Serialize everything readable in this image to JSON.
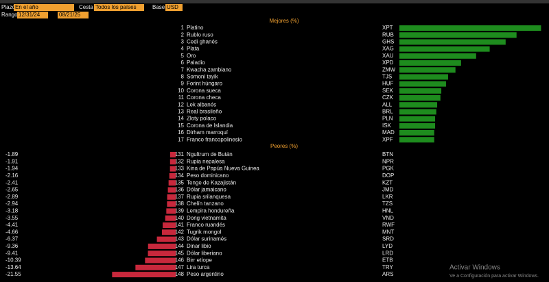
{
  "header": {
    "plazo_label": "Plazo",
    "plazo": "En el año",
    "cesta_label": "Cesta",
    "cesta": "Todos los países",
    "base_label": "Base",
    "base": "USD",
    "rango_label": "Rango",
    "start": "12/31/24",
    "end": "08/21/25"
  },
  "xlim": [
    0,
    50
  ],
  "best": {
    "title": "Mejores (%)",
    "color": "#1e8c1e",
    "ranks": [
      "1",
      "2",
      "3",
      "4",
      "5",
      "6",
      "7",
      "8",
      "9",
      "10",
      "11",
      "12",
      "13",
      "14",
      "15",
      "16",
      "17"
    ],
    "names": [
      "Platino",
      "Rublo ruso",
      "Cedi ghanés",
      "Plata",
      "Oro",
      "Paladio",
      "Kwacha zambiano",
      "Somoni tayik",
      "Forint húngaro",
      "Corona sueca",
      "Corona checa",
      "Lek albanés",
      "Real brasileño",
      "Zloty polaco",
      "Corona de Islandia",
      "Dirham marroquí",
      "Franco francopolinesio"
    ],
    "codes": [
      "XPT",
      "RUB",
      "GHS",
      "XAG",
      "XAU",
      "XPD",
      "ZMW",
      "TJS",
      "HUF",
      "SEK",
      "CZK",
      "ALL",
      "BRL",
      "PLN",
      "ISK",
      "MAD",
      "XPF"
    ],
    "values": [
      48.0,
      39.7,
      36.0,
      30.6,
      26.0,
      20.9,
      19.0,
      16.5,
      15.8,
      14.2,
      13.9,
      12.8,
      12.5,
      12.1,
      12.1,
      11.8,
      11.8
    ]
  },
  "worst": {
    "title": "Peores (%)",
    "color": "#c8283c",
    "ranks": [
      "131",
      "132",
      "133",
      "134",
      "135",
      "136",
      "137",
      "138",
      "139",
      "140",
      "141",
      "142",
      "143",
      "144",
      "145",
      "146",
      "147",
      "148"
    ],
    "names": [
      "Ngultrum de Bután",
      "Rupia nepalesa",
      "Kina de Papúa Nueva Guinea",
      "Peso dominicano",
      "Tenge de Kazajistán",
      "Dólar jamaicano",
      "Rupia srilanquesa",
      "Chelín tanzano",
      "Lempira hondureña",
      "Dong vietnamita",
      "Franco ruandés",
      "Tugrik mongol",
      "Dólar surinamés",
      "Dinar libio",
      "Dólar liberiano",
      "Birr etíope",
      "Lira turca",
      "Peso argentino"
    ],
    "codes": [
      "BTN",
      "NPR",
      "PGK",
      "DOP",
      "KZT",
      "JMD",
      "LKR",
      "TZS",
      "HNL",
      "VND",
      "RWF",
      "MNT",
      "SRD",
      "LYD",
      "LRD",
      "ETB",
      "TRY",
      "ARS"
    ],
    "values": [
      -1.89,
      -1.91,
      -1.94,
      -2.16,
      -2.41,
      -2.65,
      -2.89,
      -2.94,
      -3.18,
      -3.55,
      -4.41,
      -4.66,
      -6.37,
      -9.36,
      -9.41,
      -10.39,
      -13.64,
      -21.55
    ]
  },
  "watermark": {
    "title": "Activar Windows",
    "text": "Ve a Configuración para activar Windows."
  }
}
